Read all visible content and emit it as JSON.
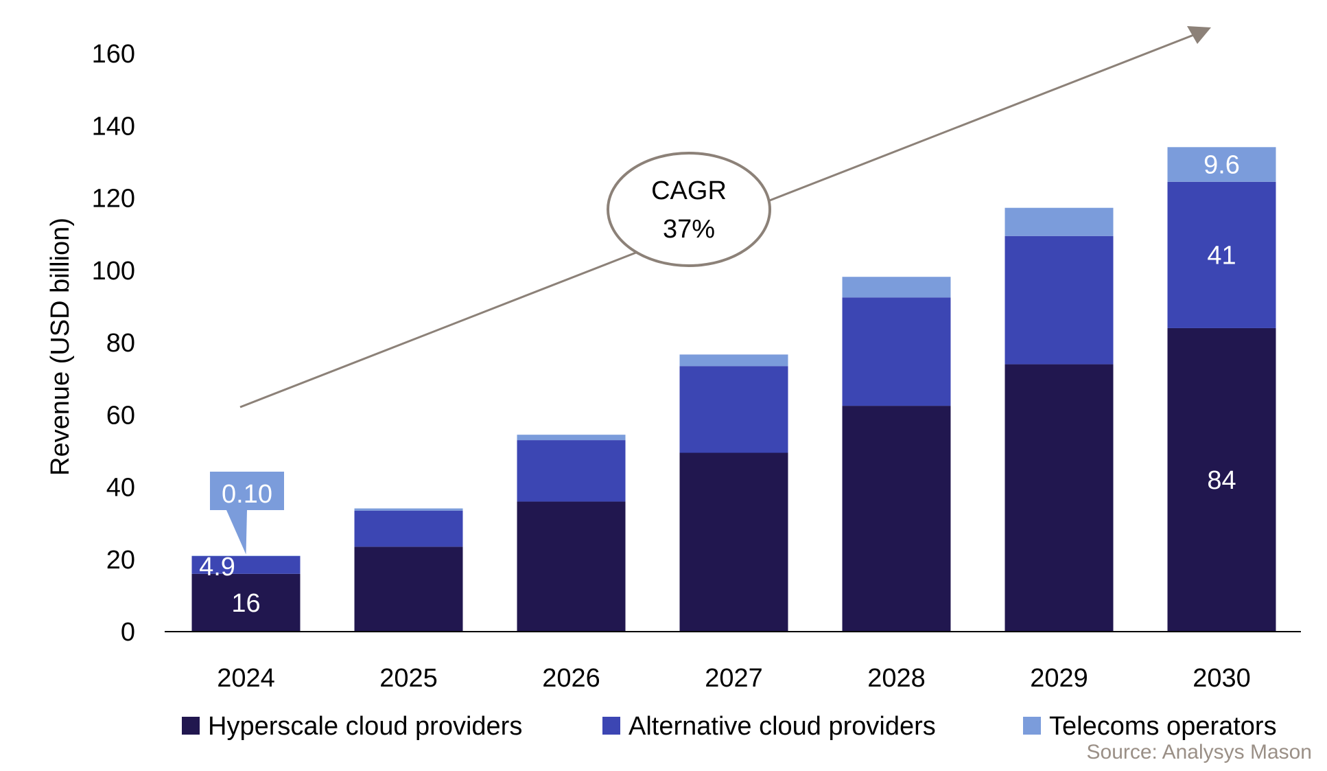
{
  "chart_data": {
    "type": "bar",
    "stacked": true,
    "categories": [
      "2024",
      "2025",
      "2026",
      "2027",
      "2028",
      "2029",
      "2030"
    ],
    "series": [
      {
        "name": "Hyperscale cloud providers",
        "color": "#21174f",
        "values": [
          16,
          23.5,
          36,
          49.5,
          62.5,
          74,
          84
        ]
      },
      {
        "name": "Alternative cloud providers",
        "color": "#3c46b3",
        "values": [
          4.9,
          10,
          17,
          24,
          30,
          35.5,
          40.5
        ]
      },
      {
        "name": "Telecoms operators",
        "color": "#7b9cdb",
        "values": [
          0.1,
          0.6,
          1.5,
          3.2,
          5.7,
          7.8,
          9.6
        ]
      }
    ],
    "data_labels": [
      {
        "category": "2024",
        "series": "Hyperscale cloud providers",
        "text": "16"
      },
      {
        "category": "2024",
        "series": "Alternative cloud providers",
        "text": "4.9"
      },
      {
        "category": "2024",
        "series": "Telecoms operators",
        "text": "0.10",
        "callout": true
      },
      {
        "category": "2030",
        "series": "Hyperscale cloud providers",
        "text": "84"
      },
      {
        "category": "2030",
        "series": "Alternative cloud providers",
        "text": "41"
      },
      {
        "category": "2030",
        "series": "Telecoms operators",
        "text": "9.6"
      }
    ],
    "ylabel": "Revenue (USD billion)",
    "xlabel": "",
    "ylim": [
      0,
      160
    ],
    "yticks": [
      "0",
      "20",
      "40",
      "60",
      "80",
      "100",
      "120",
      "140",
      "160"
    ],
    "grid": false,
    "legend_position": "bottom",
    "annotation": {
      "lines": [
        "CAGR",
        "37%"
      ],
      "arrow": "upward trend arrow across bars"
    },
    "source": "Source: Analysys Mason",
    "colors": {
      "arrow": "#8c8178",
      "axis": "#000000",
      "label_text": "#ffffff",
      "source_text": "#9a8f86"
    }
  }
}
